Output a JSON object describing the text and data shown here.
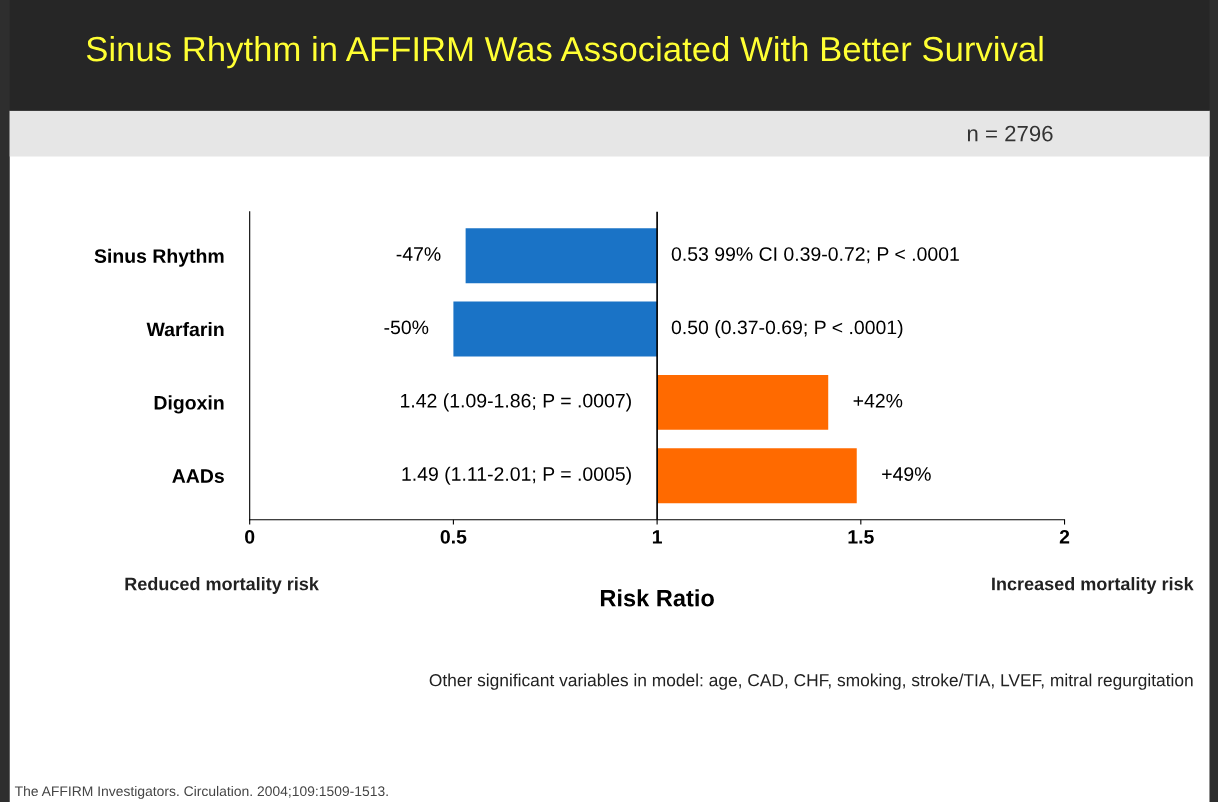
{
  "chart_data": {
    "type": "bar",
    "orientation": "horizontal",
    "title": "Sinus Rhythm in AFFIRM Was Associated With Better Survival",
    "subtitle": "n = 2796",
    "xlabel": "Risk Ratio",
    "categories": [
      "Sinus Rhythm",
      "Warfarin",
      "Digoxin",
      "AADs"
    ],
    "base": [
      1,
      1,
      1,
      1
    ],
    "values": [
      -0.47,
      -0.5,
      0.42,
      0.49
    ],
    "colors": [
      "#1a73c6",
      "#1a73c6",
      "#ff6a00",
      "#ff6a00"
    ],
    "value_labels": [
      "-47%",
      "-50%",
      "+42%",
      "+49%"
    ],
    "xlim": [
      0,
      2
    ],
    "xticks": [
      0,
      0.5,
      1,
      1.5,
      2
    ],
    "grid": false,
    "ref_lines": [
      {
        "axis": "x",
        "value": 1,
        "label": null
      }
    ],
    "annotations": [
      "0.53 99% CI 0.39-0.72; P < .0001",
      "0.50 (0.37-0.69; P < .0001)",
      "1.42 (1.09-1.86; P = .0007)",
      "1.49 (1.11-2.01; P = .0005)",
      "Reduced mortality risk",
      "Increased mortality risk",
      "Other significant variables in model: age, CAD, CHF, smoking, stroke/TIA, LVEF, mitral regurgitation",
      "The AFFIRM Investigators. Circulation. 2004;109:1509-1513."
    ]
  }
}
